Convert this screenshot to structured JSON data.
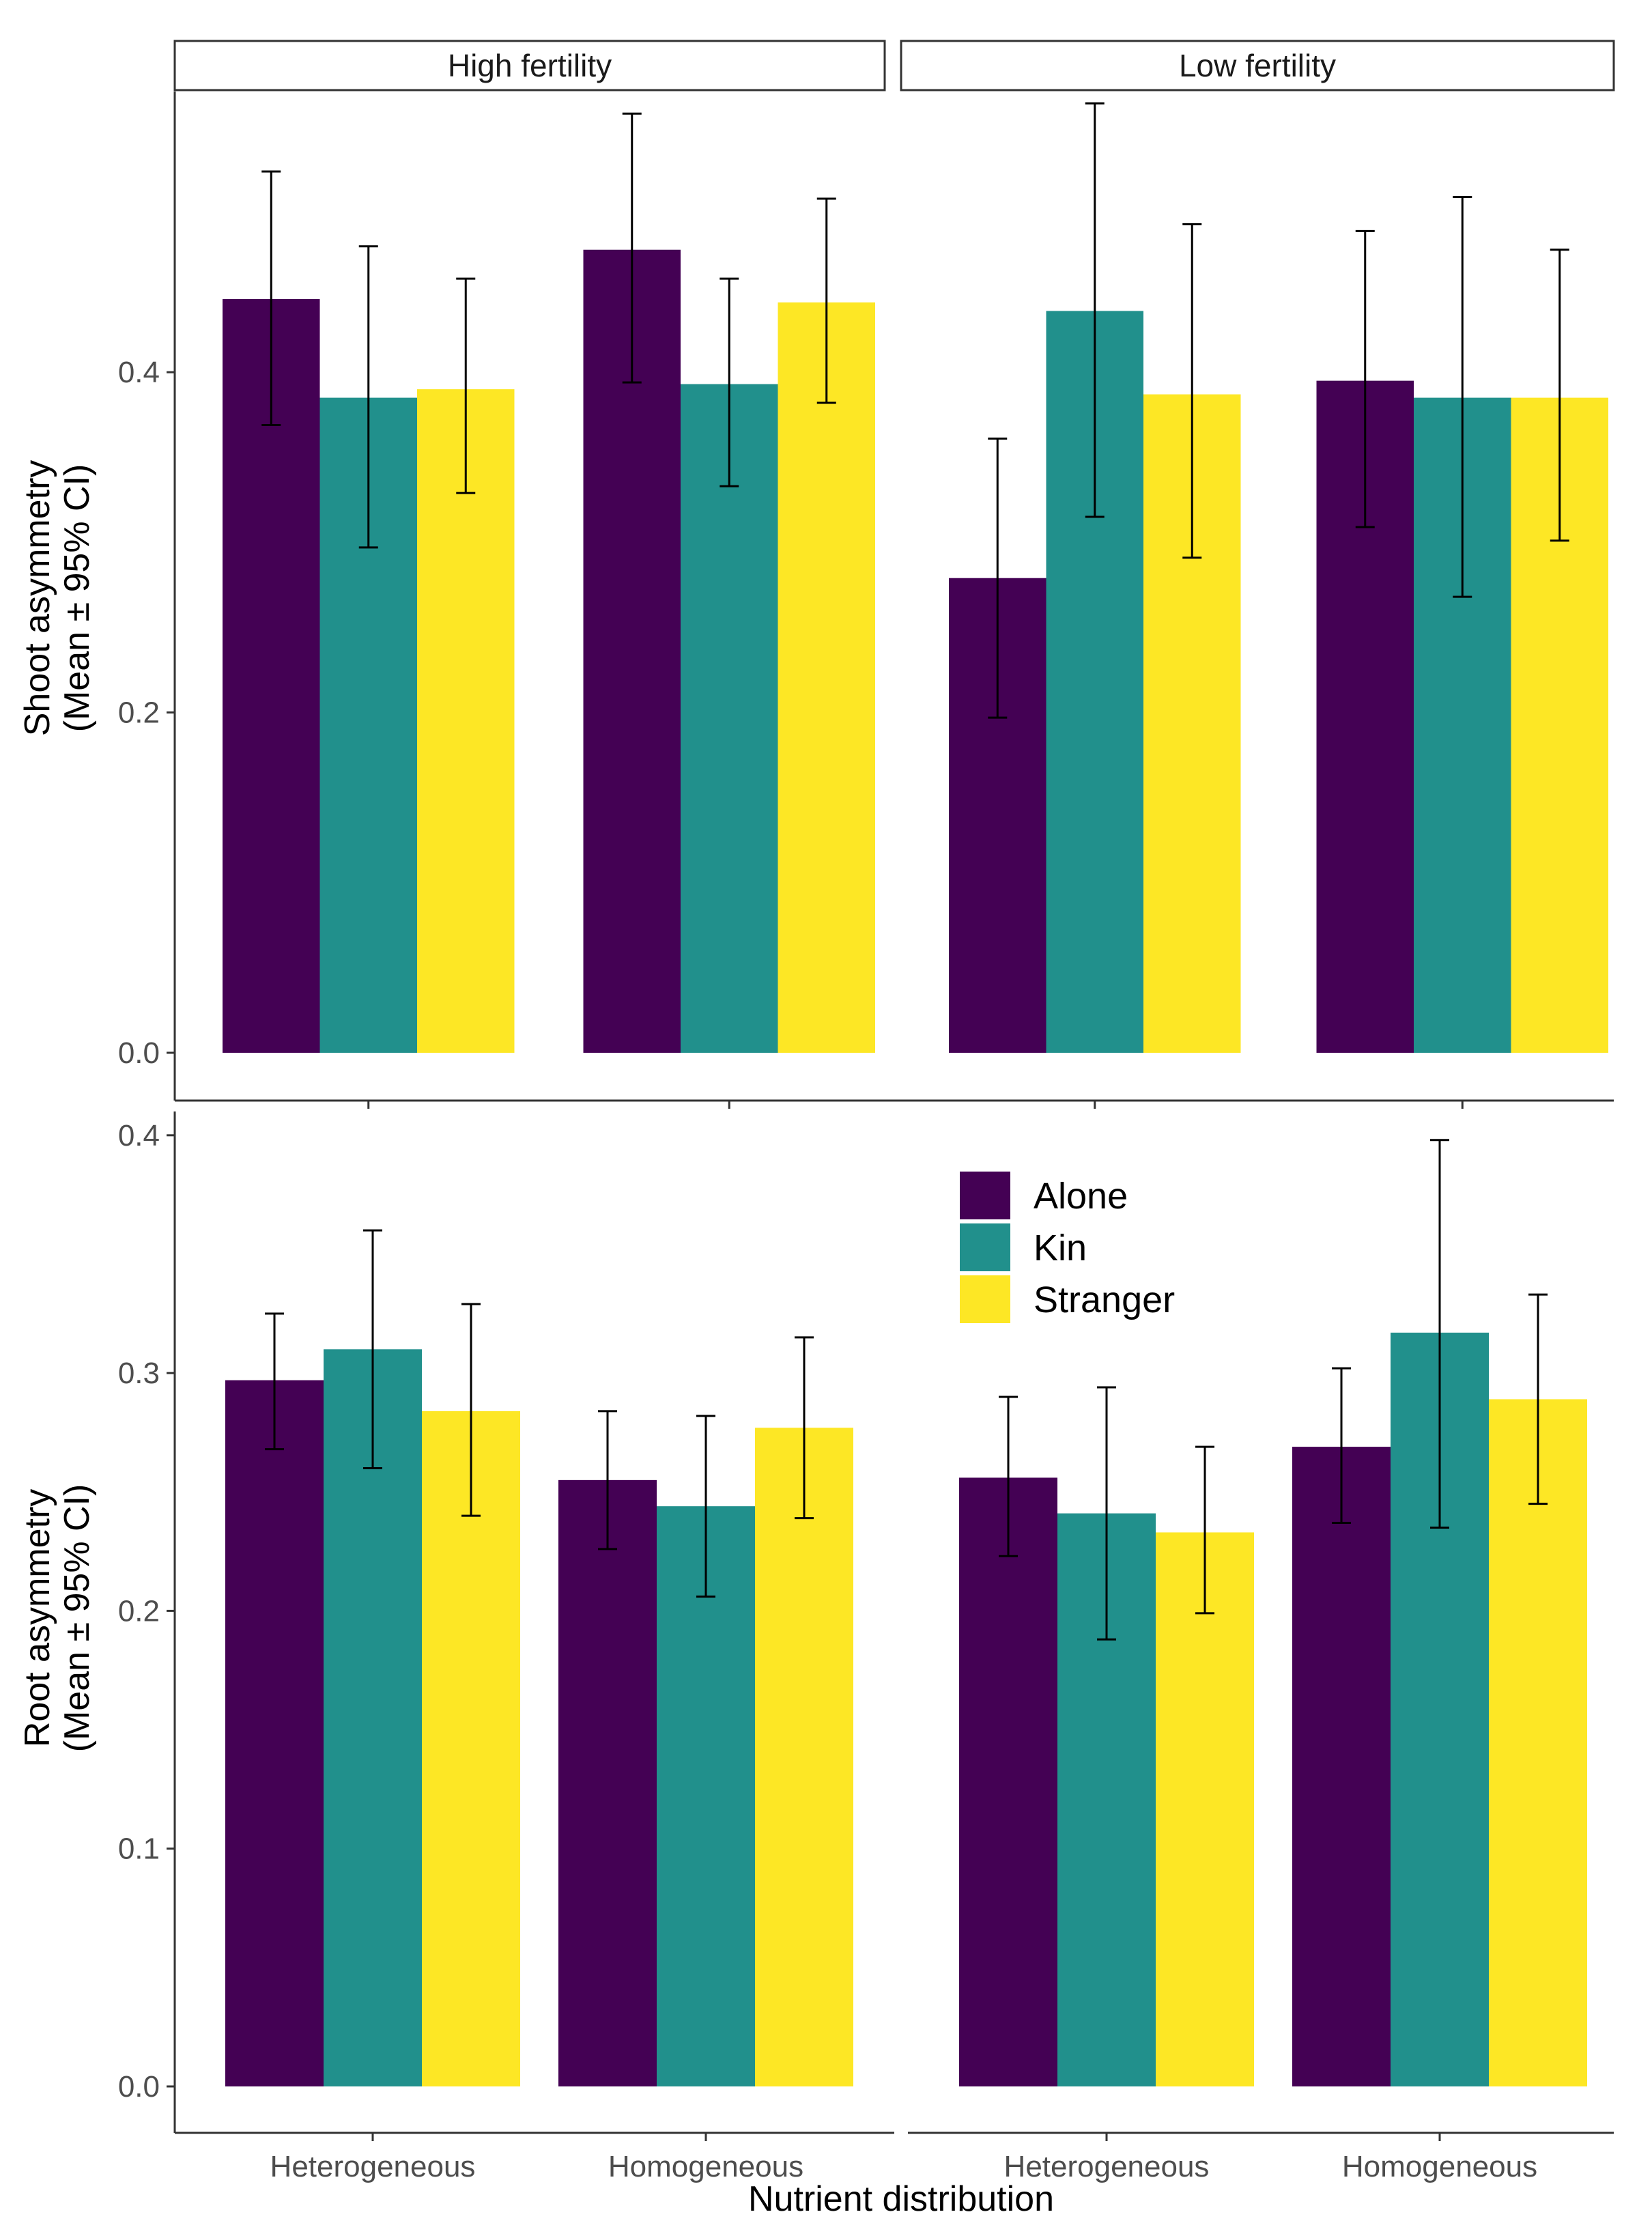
{
  "chart_data": {
    "type": "bar",
    "facets": [
      "High fertility",
      "Low fertility"
    ],
    "categories": [
      "Heterogeneous",
      "Homogeneous"
    ],
    "xlabel": "Nutrient distribution",
    "legend": {
      "position": "inside-top-right",
      "entries": [
        "Alone",
        "Kin",
        "Stranger"
      ],
      "colors": [
        "#440154",
        "#21908C",
        "#FDE725"
      ]
    },
    "panels": [
      {
        "name": "shoot",
        "ylabel_line1": "Shoot asymmetry",
        "ylabel_line2": "(Mean ± 95% CI)",
        "ylim": [
          0,
          0.565
        ],
        "yticks": [
          0.0,
          0.2,
          0.4
        ],
        "ytick_labels": [
          "0.0",
          "0.2",
          "0.4"
        ],
        "data": {
          "High fertility": {
            "Heterogeneous": {
              "Alone": [
                0.443,
                0.369,
                0.518
              ],
              "Kin": [
                0.385,
                0.297,
                0.474
              ],
              "Stranger": [
                0.39,
                0.329,
                0.455
              ]
            },
            "Homogeneous": {
              "Alone": [
                0.472,
                0.394,
                0.552
              ],
              "Kin": [
                0.393,
                0.333,
                0.455
              ],
              "Stranger": [
                0.441,
                0.382,
                0.502
              ]
            }
          },
          "Low fertility": {
            "Heterogeneous": {
              "Alone": [
                0.279,
                0.197,
                0.361
              ],
              "Kin": [
                0.436,
                0.315,
                0.558
              ],
              "Stranger": [
                0.387,
                0.291,
                0.487
              ]
            },
            "Homogeneous": {
              "Alone": [
                0.395,
                0.309,
                0.483
              ],
              "Kin": [
                0.385,
                0.268,
                0.503
              ],
              "Stranger": [
                0.385,
                0.301,
                0.472
              ]
            }
          }
        }
      },
      {
        "name": "root",
        "ylabel_line1": "Root asymmetry",
        "ylabel_line2": "(Mean ± 95% CI)",
        "ylim": [
          0,
          0.41
        ],
        "yticks": [
          0.0,
          0.1,
          0.2,
          0.3,
          0.4
        ],
        "ytick_labels": [
          "0.0",
          "0.1",
          "0.2",
          "0.3",
          "0.4"
        ],
        "data": {
          "High fertility": {
            "Heterogeneous": {
              "Alone": [
                0.297,
                0.268,
                0.325
              ],
              "Kin": [
                0.31,
                0.26,
                0.36
              ],
              "Stranger": [
                0.284,
                0.24,
                0.329
              ]
            },
            "Homogeneous": {
              "Alone": [
                0.255,
                0.226,
                0.284
              ],
              "Kin": [
                0.244,
                0.206,
                0.282
              ],
              "Stranger": [
                0.277,
                0.239,
                0.315
              ]
            }
          },
          "Low fertility": {
            "Heterogeneous": {
              "Alone": [
                0.256,
                0.223,
                0.29
              ],
              "Kin": [
                0.241,
                0.188,
                0.294
              ],
              "Stranger": [
                0.233,
                0.199,
                0.269
              ]
            },
            "Homogeneous": {
              "Alone": [
                0.269,
                0.237,
                0.302
              ],
              "Kin": [
                0.317,
                0.235,
                0.398
              ],
              "Stranger": [
                0.289,
                0.245,
                0.333
              ]
            }
          }
        }
      }
    ]
  }
}
